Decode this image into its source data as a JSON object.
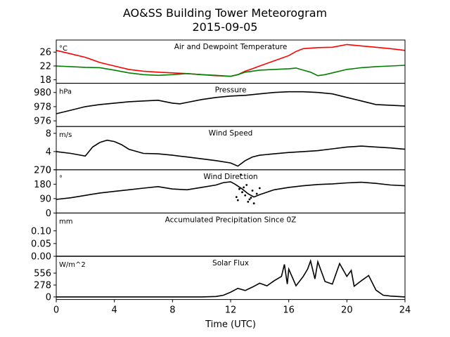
{
  "figure": {
    "title_line1": "AO&SS Building Tower Meteorogram",
    "title_line2": "2015-09-05",
    "xlabel": "Time (UTC)",
    "xlim": [
      0,
      24
    ],
    "xticks": [
      0,
      4,
      8,
      12,
      16,
      20,
      24
    ]
  },
  "chart_data": [
    {
      "type": "line",
      "title": "Air and Dewpoint Temperature",
      "ylabel": "°C",
      "ylim": [
        17,
        29.5
      ],
      "yticks": [
        18,
        22,
        26
      ],
      "series": [
        {
          "color": "#ff0000",
          "x": [
            0,
            1,
            2,
            3,
            4,
            5,
            6,
            7,
            8,
            9,
            10,
            11,
            12,
            12.5,
            13,
            13.5,
            14,
            15,
            16,
            16.5,
            17,
            18,
            19,
            20,
            21,
            22,
            23,
            24
          ],
          "values": [
            26.5,
            25.5,
            24.5,
            23,
            22,
            21,
            20.5,
            20.2,
            20,
            19.8,
            19.5,
            19.2,
            19,
            19.5,
            20.5,
            21.2,
            22,
            23.5,
            25,
            26.2,
            27,
            27.3,
            27.4,
            28.2,
            27.8,
            27.4,
            27,
            26.5
          ]
        },
        {
          "color": "#008000",
          "x": [
            0,
            1,
            2,
            3,
            4,
            5,
            6,
            7,
            8,
            9,
            10,
            11,
            12,
            12.5,
            13,
            13.5,
            14,
            15,
            16,
            16.5,
            17,
            17.5,
            18,
            18.5,
            19,
            20,
            21,
            22,
            23,
            24
          ],
          "values": [
            22,
            21.8,
            21.6,
            21.5,
            20.8,
            20,
            19.5,
            19.3,
            19.5,
            19.8,
            19.5,
            19.3,
            19,
            19.5,
            20.2,
            20.5,
            20.8,
            21,
            21.2,
            21.4,
            20.8,
            20.2,
            19.2,
            19.5,
            20,
            21,
            21.5,
            21.8,
            22,
            22.2
          ]
        }
      ]
    },
    {
      "type": "line",
      "title": "Pressure",
      "ylabel": "hPa",
      "ylim": [
        975.2,
        981.3
      ],
      "yticks": [
        976,
        978,
        980
      ],
      "series": [
        {
          "color": "#000000",
          "x": [
            0,
            1,
            2,
            3,
            4,
            5,
            6,
            7,
            8,
            8.5,
            9,
            10,
            11,
            12,
            13,
            14,
            15,
            16,
            17,
            18,
            19,
            20,
            21,
            22,
            23,
            24
          ],
          "values": [
            977,
            977.5,
            978,
            978.3,
            978.5,
            978.7,
            978.8,
            978.9,
            978.5,
            978.4,
            978.6,
            979,
            979.3,
            979.5,
            979.6,
            979.8,
            980,
            980.1,
            980.1,
            980,
            979.8,
            979.3,
            978.8,
            978.3,
            978.2,
            978.1
          ]
        }
      ]
    },
    {
      "type": "line",
      "title": "Wind Speed",
      "ylabel": "m/s",
      "ylim": [
        0,
        9.5
      ],
      "yticks": [
        0,
        4,
        8
      ],
      "series": [
        {
          "color": "#000000",
          "x": [
            0,
            1,
            2,
            2.5,
            3,
            3.5,
            4,
            4.5,
            5,
            6,
            7,
            8,
            9,
            10,
            11,
            12,
            12.5,
            13,
            13.5,
            14,
            15,
            16,
            17,
            18,
            19,
            20,
            21,
            22,
            23,
            24
          ],
          "values": [
            4,
            3.6,
            3,
            5,
            6,
            6.5,
            6.2,
            5.5,
            4.5,
            3.6,
            3.5,
            3.2,
            2.8,
            2.4,
            2,
            1.5,
            0.8,
            2,
            2.8,
            3.2,
            3.5,
            3.8,
            4,
            4.2,
            4.6,
            5,
            5.2,
            5,
            4.8,
            4.5
          ]
        }
      ]
    },
    {
      "type": "line",
      "title": "Wind Direction",
      "ylabel": "°",
      "ylim": [
        0,
        270
      ],
      "yticks": [
        0,
        90,
        180,
        270
      ],
      "series": [
        {
          "color": "#000000",
          "x": [
            0,
            1,
            2,
            3,
            4,
            5,
            6,
            7,
            8,
            9,
            10,
            11,
            11.5,
            12,
            12.3,
            12.8,
            13.2,
            13.6,
            14,
            14.5,
            15,
            16,
            17,
            18,
            19,
            20,
            21,
            22,
            23,
            24
          ],
          "values": [
            85,
            95,
            110,
            125,
            135,
            145,
            155,
            165,
            150,
            145,
            160,
            175,
            190,
            195,
            180,
            150,
            120,
            100,
            115,
            130,
            145,
            160,
            170,
            178,
            182,
            188,
            192,
            185,
            175,
            170
          ]
        }
      ],
      "scatter_points": {
        "x": [
          12.4,
          12.5,
          12.6,
          12.8,
          12.9,
          13.0,
          13.2,
          13.4,
          13.5,
          13.6,
          13.8,
          14.0,
          12.7,
          13.1,
          13.3
        ],
        "values": [
          100,
          80,
          150,
          130,
          160,
          110,
          70,
          95,
          140,
          60,
          120,
          155,
          240,
          175,
          85
        ]
      }
    },
    {
      "type": "line",
      "title": "Accumulated Precipitation Since 0Z",
      "ylabel": "mm",
      "ylim": [
        0,
        0.17
      ],
      "yticks": [
        0.0,
        0.05,
        0.1
      ],
      "ytick_labels": [
        "0.00",
        "0.05",
        "0.10"
      ],
      "series": [
        {
          "color": "#000000",
          "x": [
            0,
            24
          ],
          "values": [
            0,
            0
          ]
        }
      ]
    },
    {
      "type": "line",
      "title": "Solar Flux",
      "ylabel": "W/m^2",
      "ylim": [
        -60,
        950
      ],
      "yticks": [
        0,
        278,
        556
      ],
      "series": [
        {
          "color": "#000000",
          "x": [
            0,
            6,
            9,
            10,
            11,
            11.5,
            12,
            12.5,
            13,
            13.5,
            14,
            14.5,
            15,
            15.5,
            15.7,
            15.9,
            16,
            16.5,
            17,
            17.3,
            17.5,
            17.8,
            18,
            18.5,
            19,
            19.5,
            20,
            20.3,
            20.5,
            21,
            21.5,
            22,
            22.5,
            23,
            23.5,
            24
          ],
          "values": [
            0,
            0,
            0,
            0,
            10,
            40,
            110,
            200,
            150,
            230,
            320,
            260,
            380,
            480,
            760,
            300,
            650,
            260,
            480,
            650,
            840,
            420,
            820,
            360,
            300,
            780,
            480,
            620,
            250,
            380,
            500,
            160,
            40,
            20,
            10,
            0
          ]
        }
      ]
    }
  ]
}
